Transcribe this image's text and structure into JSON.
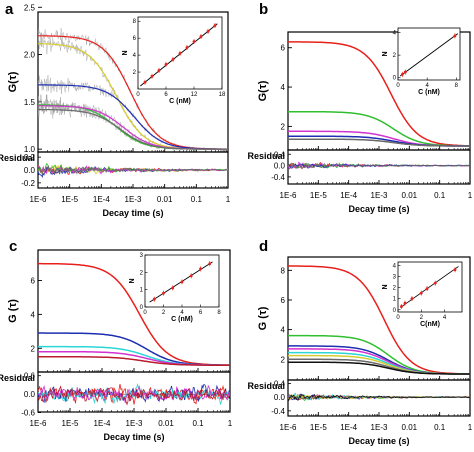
{
  "chart_data": [
    {
      "panel": "a",
      "type": "line",
      "xscale": "log",
      "xlim": [
        1e-06,
        1
      ],
      "xticks": [
        "1E-6",
        "1E-5",
        "1E-4",
        "1E-3",
        "0.01",
        "0.1",
        "1"
      ],
      "xlabel": "Decay time (s)",
      "ylabel": "G(τ)",
      "ylim": [
        0.97,
        2.45
      ],
      "yticks": [
        "1.0",
        "1.5",
        "2.0",
        "2.5"
      ],
      "series": [
        {
          "color": "#e8201c",
          "g0": 2.2,
          "tau_d": 0.00085
        },
        {
          "color": "#d8cc30",
          "g0": 2.12,
          "tau_d": 0.0003
        },
        {
          "color": "#1d2fb0",
          "g0": 1.68,
          "tau_d": 0.0011
        },
        {
          "color": "#2fbf2f",
          "g0": 1.47,
          "tau_d": 0.0003
        },
        {
          "color": "#d233d0",
          "g0": 1.46,
          "tau_d": 0.0005
        },
        {
          "color": "#6a6a6a",
          "g0": 1.42,
          "tau_d": 0.0004
        }
      ],
      "noisy": true,
      "residual": {
        "ylabel": "Residual",
        "ylim": [
          -0.28,
          0.28
        ],
        "yticks": [
          "0.2",
          "0.0",
          "-0.2"
        ],
        "amplitude": 0.09
      },
      "inset": {
        "xlabel": "C (nM)",
        "ylabel": "N",
        "xticks": [
          "0",
          "6",
          "12",
          "18"
        ],
        "xlim": [
          0,
          18
        ],
        "yticks": [
          "2",
          "4",
          "6",
          "8"
        ],
        "ylim": [
          0,
          8.5
        ],
        "points": [
          [
            1.5,
            0.8
          ],
          [
            3,
            1.5
          ],
          [
            4.5,
            2.2
          ],
          [
            6,
            2.9
          ],
          [
            7.5,
            3.5
          ],
          [
            9,
            4.2
          ],
          [
            10.5,
            4.9
          ],
          [
            12,
            5.6
          ],
          [
            13.5,
            6.2
          ],
          [
            15,
            6.8
          ],
          [
            16.5,
            7.5
          ]
        ],
        "fit": [
          [
            0.5,
            0.35
          ],
          [
            17,
            7.7
          ]
        ]
      }
    },
    {
      "panel": "b",
      "type": "line",
      "xscale": "log",
      "xlim": [
        1e-06,
        1
      ],
      "xticks": [
        "1E-6",
        "1E-5",
        "1E-4",
        "1E-3",
        "0.01",
        "0.1",
        "1"
      ],
      "xlabel": "Decay time (s)",
      "ylabel": "G(τ)",
      "ylim": [
        0.8,
        6.8
      ],
      "yticks": [
        "2",
        "4",
        "6"
      ],
      "series": [
        {
          "color": "#e8201c",
          "g0": 6.3,
          "tau_d": 0.0025
        },
        {
          "color": "#2fbf2f",
          "g0": 2.75,
          "tau_d": 0.003
        },
        {
          "color": "#d233d0",
          "g0": 1.75,
          "tau_d": 0.003
        },
        {
          "color": "#1d2fb0",
          "g0": 1.5,
          "tau_d": 0.003
        },
        {
          "color": "#6a6a6a",
          "g0": 1.35,
          "tau_d": 0.003
        }
      ],
      "noisy": false,
      "residual": {
        "ylabel": "Residual",
        "ylim": [
          -0.65,
          0.55
        ],
        "yticks": [
          "0.4",
          "0.0",
          "-0.4"
        ],
        "amplitude": 0.12
      },
      "inset": {
        "xlabel": "C (nM)",
        "ylabel": "N",
        "xticks": [
          "0",
          "4",
          "8"
        ],
        "xlim": [
          0,
          8.5
        ],
        "yticks": [
          "0",
          "2",
          "4"
        ],
        "ylim": [
          -0.2,
          4.4
        ],
        "points": [
          [
            0.6,
            0.3
          ],
          [
            1.0,
            0.5
          ],
          [
            7.8,
            3.7
          ]
        ],
        "fit": [
          [
            0.3,
            0.15
          ],
          [
            8.2,
            3.9
          ]
        ]
      }
    },
    {
      "panel": "c",
      "type": "line",
      "xscale": "log",
      "xlim": [
        1e-06,
        1
      ],
      "xticks": [
        "1E-6",
        "1E-5",
        "1E-4",
        "1E-3",
        "0.01",
        "0.1",
        "1"
      ],
      "xlabel": "Decay time (s)",
      "ylabel": "G (τ)",
      "ylim": [
        0.6,
        7.8
      ],
      "yticks": [
        "2",
        "4",
        "6"
      ],
      "series": [
        {
          "color": "#e8201c",
          "g0": 7.0,
          "tau_d": 0.0015
        },
        {
          "color": "#1d2fb0",
          "g0": 2.9,
          "tau_d": 0.0025
        },
        {
          "color": "#2bd6d6",
          "g0": 2.1,
          "tau_d": 0.0025
        },
        {
          "color": "#d233d0",
          "g0": 1.8,
          "tau_d": 0.0025
        },
        {
          "color": "#b81c2e",
          "g0": 1.5,
          "tau_d": 0.002
        }
      ],
      "noisy": false,
      "residual": {
        "ylabel": "Residual",
        "ylim": [
          -0.58,
          0.72
        ],
        "yticks": [
          "0.6",
          "0.0",
          "-0.6"
        ],
        "amplitude": 0.22
      },
      "inset": {
        "xlabel": "C (nM)",
        "ylabel": "N",
        "xticks": [
          "0",
          "2",
          "4",
          "6",
          "8"
        ],
        "xlim": [
          0,
          8
        ],
        "yticks": [
          "0",
          "1",
          "2",
          "3"
        ],
        "ylim": [
          0,
          3
        ],
        "points": [
          [
            1,
            0.45
          ],
          [
            2,
            0.8
          ],
          [
            3,
            1.1
          ],
          [
            4,
            1.45
          ],
          [
            5,
            1.8
          ],
          [
            6,
            2.2
          ],
          [
            7,
            2.5
          ]
        ],
        "fit": [
          [
            0.5,
            0.28
          ],
          [
            7.3,
            2.6
          ]
        ]
      }
    },
    {
      "panel": "d",
      "type": "line",
      "xscale": "log",
      "xlim": [
        1e-06,
        1
      ],
      "xticks": [
        "1E-6",
        "1E-5",
        "1E-4",
        "1E-3",
        "0.01",
        "0.1",
        "1"
      ],
      "xlabel": "Decay time (s)",
      "ylabel": "G (τ)",
      "ylim": [
        0.6,
        8.9
      ],
      "yticks": [
        "2",
        "4",
        "6",
        "8"
      ],
      "series": [
        {
          "color": "#e8201c",
          "g0": 8.3,
          "tau_d": 0.0015
        },
        {
          "color": "#2fbf2f",
          "g0": 3.6,
          "tau_d": 0.002
        },
        {
          "color": "#1d2fb0",
          "g0": 2.9,
          "tau_d": 0.002
        },
        {
          "color": "#d233d0",
          "g0": 2.7,
          "tau_d": 0.002
        },
        {
          "color": "#2bd6d6",
          "g0": 2.45,
          "tau_d": 0.002
        },
        {
          "color": "#d8cc30",
          "g0": 2.25,
          "tau_d": 0.002
        },
        {
          "color": "#6a6a6a",
          "g0": 2.0,
          "tau_d": 0.002
        },
        {
          "color": "#111111",
          "g0": 1.8,
          "tau_d": 0.002
        }
      ],
      "noisy": false,
      "residual": {
        "ylabel": "Residual",
        "ylim": [
          -0.55,
          0.5
        ],
        "yticks": [
          "0.4",
          "0.0",
          "-0.4"
        ],
        "amplitude": 0.1
      },
      "inset": {
        "xlabel": "C(nM)",
        "ylabel": "N",
        "xticks": [
          "0",
          "2",
          "4"
        ],
        "xlim": [
          0,
          5.5
        ],
        "yticks": [
          "0",
          "1",
          "2",
          "3",
          "4"
        ],
        "ylim": [
          -0.2,
          4.3
        ],
        "points": [
          [
            0.3,
            0.3
          ],
          [
            0.6,
            0.6
          ],
          [
            1.2,
            1.0
          ],
          [
            2.0,
            1.5
          ],
          [
            2.5,
            1.9
          ],
          [
            3.2,
            2.4
          ],
          [
            4.9,
            3.6
          ]
        ],
        "fit": [
          [
            0.2,
            0.2
          ],
          [
            5.2,
            3.9
          ]
        ]
      }
    }
  ]
}
